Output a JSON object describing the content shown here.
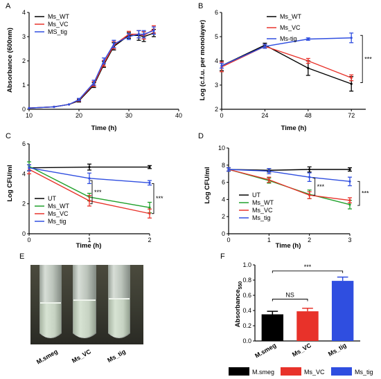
{
  "chart_data": [
    {
      "panel_label": "A",
      "type": "line",
      "xlabel": "Time (h)",
      "ylabel": "Absorbance (600nm)",
      "xlim": [
        10,
        40
      ],
      "ylim": [
        0,
        4
      ],
      "xticks": [
        10,
        20,
        30,
        40
      ],
      "yticks": [
        0,
        1,
        2,
        3,
        4
      ],
      "legend_position": "top-left",
      "series": [
        {
          "name": "Ms_WT",
          "color": "#000000",
          "x": [
            10,
            15,
            18,
            20,
            23,
            25,
            27,
            30,
            32,
            33,
            35
          ],
          "y": [
            0.05,
            0.1,
            0.2,
            0.35,
            1.0,
            1.85,
            2.6,
            3.05,
            3.05,
            3.0,
            3.15
          ],
          "err": [
            0,
            0,
            0,
            0.05,
            0.1,
            0.12,
            0.15,
            0.12,
            0.2,
            0.2,
            0.15
          ]
        },
        {
          "name": "Ms_VC",
          "color": "#e8322a",
          "x": [
            10,
            15,
            18,
            20,
            23,
            25,
            27,
            30,
            32,
            33,
            35
          ],
          "y": [
            0.05,
            0.1,
            0.2,
            0.38,
            1.05,
            1.9,
            2.65,
            3.1,
            3.1,
            3.05,
            3.3
          ],
          "err": [
            0,
            0,
            0,
            0.05,
            0.1,
            0.12,
            0.15,
            0.12,
            0.15,
            0.15,
            0.15
          ]
        },
        {
          "name": "MS_tig",
          "color": "#2f4ee0",
          "x": [
            10,
            15,
            18,
            20,
            23,
            25,
            27,
            30,
            32,
            33,
            35
          ],
          "y": [
            0.05,
            0.1,
            0.2,
            0.4,
            1.1,
            2.0,
            2.7,
            3.0,
            3.1,
            3.1,
            3.25
          ],
          "err": [
            0,
            0,
            0,
            0.05,
            0.1,
            0.12,
            0.15,
            0.12,
            0.15,
            0.15,
            0.15
          ]
        }
      ]
    },
    {
      "panel_label": "B",
      "type": "line",
      "xlabel": "Time (h)",
      "ylabel": "Log (c.f.u. per monolayer)",
      "xlim": [
        0,
        80
      ],
      "ylim": [
        2,
        6
      ],
      "xticks": [
        0,
        24,
        48,
        72
      ],
      "yticks": [
        2,
        3,
        4,
        5,
        6
      ],
      "legend_position": "top-right",
      "significance": "***",
      "series": [
        {
          "name": "Ms_WT",
          "color": "#000000",
          "x": [
            0,
            24,
            48,
            72
          ],
          "y": [
            3.8,
            4.65,
            3.7,
            3.05
          ],
          "err": [
            0.2,
            0.08,
            0.3,
            0.3
          ]
        },
        {
          "name": "Ms_VC",
          "color": "#e8322a",
          "x": [
            0,
            24,
            48,
            72
          ],
          "y": [
            3.75,
            4.6,
            4.0,
            3.3
          ],
          "err": [
            0.2,
            0.08,
            0.1,
            0.12
          ]
        },
        {
          "name": "Ms-tig",
          "color": "#2f4ee0",
          "x": [
            0,
            24,
            48,
            72
          ],
          "y": [
            3.8,
            4.6,
            4.9,
            4.95
          ],
          "err": [
            0.1,
            0.08,
            0.05,
            0.2
          ]
        }
      ]
    },
    {
      "panel_label": "C",
      "type": "line",
      "xlabel": "Time (h)",
      "ylabel": "Log CFU/ml",
      "xlim": [
        0,
        2
      ],
      "ylim": [
        0,
        6
      ],
      "xticks": [
        0,
        1,
        2
      ],
      "yticks": [
        0,
        2,
        4,
        6
      ],
      "legend_position": "bottom-left",
      "significance": [
        "***",
        "***"
      ],
      "series": [
        {
          "name": "UT",
          "color": "#000000",
          "x": [
            0,
            1,
            2
          ],
          "y": [
            4.4,
            4.45,
            4.45
          ],
          "err": [
            0.2,
            0.2,
            0.1
          ]
        },
        {
          "name": "Ms_WT",
          "color": "#1fa02a",
          "x": [
            0,
            1,
            2
          ],
          "y": [
            4.5,
            2.45,
            1.75
          ],
          "err": [
            0.3,
            0.25,
            0.35
          ]
        },
        {
          "name": "Ms_VC",
          "color": "#e8322a",
          "x": [
            0,
            1,
            2
          ],
          "y": [
            4.3,
            2.2,
            1.35
          ],
          "err": [
            0.3,
            0.35,
            0.3
          ]
        },
        {
          "name": "Ms_tig",
          "color": "#2f4ee0",
          "x": [
            0,
            1,
            2
          ],
          "y": [
            4.4,
            3.7,
            3.4
          ],
          "err": [
            0.2,
            0.35,
            0.15
          ]
        }
      ]
    },
    {
      "panel_label": "D",
      "type": "line",
      "xlabel": "Time (h)",
      "ylabel": "Log CFU/ml",
      "xlim": [
        0,
        3
      ],
      "ylim": [
        0,
        10
      ],
      "xticks": [
        0,
        1,
        2,
        3
      ],
      "yticks": [
        0,
        2,
        4,
        6,
        8,
        10
      ],
      "legend_position": "bottom-left",
      "significance": [
        "***",
        "***"
      ],
      "series": [
        {
          "name": "UT",
          "color": "#000000",
          "x": [
            0,
            1,
            2,
            3
          ],
          "y": [
            7.5,
            7.4,
            7.5,
            7.5
          ],
          "err": [
            0.2,
            0.2,
            0.3,
            0.2
          ]
        },
        {
          "name": "Ms_WT",
          "color": "#1fa02a",
          "x": [
            0,
            1,
            2,
            3
          ],
          "y": [
            7.5,
            6.2,
            4.6,
            3.4
          ],
          "err": [
            0.2,
            0.3,
            0.5,
            0.5
          ]
        },
        {
          "name": "Ms_VC",
          "color": "#e8322a",
          "x": [
            0,
            1,
            2,
            3
          ],
          "y": [
            7.5,
            6.3,
            4.5,
            3.9
          ],
          "err": [
            0.2,
            0.3,
            0.4,
            0.3
          ]
        },
        {
          "name": "Ms_tig",
          "color": "#2f4ee0",
          "x": [
            0,
            1,
            2,
            3
          ],
          "y": [
            7.5,
            7.3,
            6.6,
            6.1
          ],
          "err": [
            0.2,
            0.3,
            0.5,
            0.5
          ]
        }
      ]
    },
    {
      "panel_label": "F",
      "type": "bar",
      "ylabel": "Absorbance",
      "ylabel_subscript": "550",
      "ylim": [
        0,
        1.0
      ],
      "yticks": [
        "0.0",
        "0.2",
        "0.4",
        "0.6",
        "0.8",
        "1.0"
      ],
      "categories": [
        "M.smeg",
        "Ms_VC",
        "Ms_tig"
      ],
      "values": [
        0.35,
        0.39,
        0.79
      ],
      "errors": [
        0.04,
        0.04,
        0.05
      ],
      "colors": [
        "#000000",
        "#e8322a",
        "#2f4ee0"
      ],
      "comparisons": [
        {
          "from": "M.smeg",
          "to": "Ms_VC",
          "label": "NS"
        },
        {
          "from": "M.smeg",
          "to": "Ms_tig",
          "label": "***"
        }
      ],
      "legend": [
        "M.smeg",
        "Ms_VC",
        "Ms_tig"
      ],
      "legend_position": "bottom"
    }
  ],
  "photo_panel": {
    "panel_label": "E",
    "tube_labels": [
      "M.smeg",
      "Ms_VC",
      "Ms_tig"
    ]
  }
}
